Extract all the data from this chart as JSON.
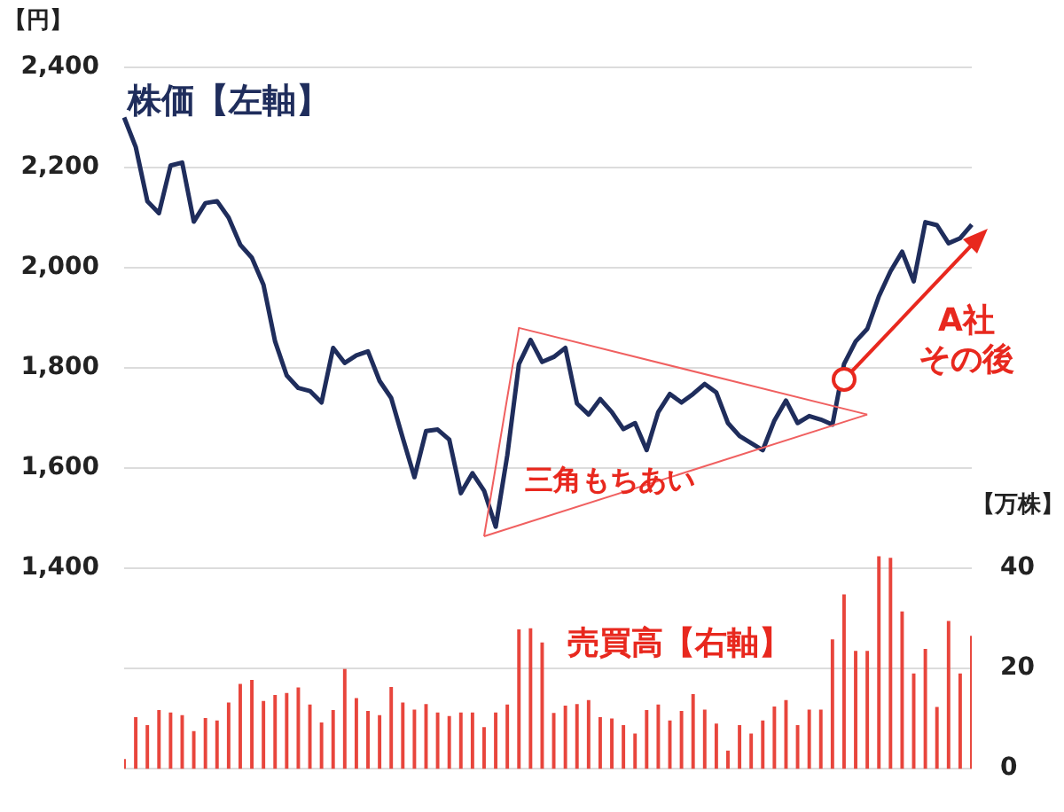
{
  "chart_data": {
    "type": "line",
    "categories": [
      null,
      null,
      null,
      null,
      null,
      null,
      null,
      null,
      null,
      null,
      null,
      null,
      null,
      null,
      null,
      null,
      null,
      null,
      null,
      null,
      null,
      null,
      null,
      null,
      null,
      null,
      null,
      null,
      null,
      null,
      null,
      null,
      null,
      null,
      null,
      null,
      null,
      null,
      null,
      null,
      null,
      null,
      null,
      null,
      null,
      null,
      null,
      null,
      null,
      null,
      null,
      null,
      null,
      null,
      null,
      null,
      null,
      null,
      null,
      null,
      null,
      null,
      null,
      null,
      null,
      null,
      null,
      null,
      null,
      null,
      null,
      null,
      null,
      null
    ],
    "series": [
      {
        "type": "bar",
        "axis": "y2",
        "color": "#e8453c",
        "values": [
          1.8,
          10.2,
          8.6,
          11.6,
          11.1,
          10.6,
          7.4,
          10,
          9.5,
          13.1,
          16.8,
          17.6,
          13.4,
          14.6,
          15,
          16.1,
          12.7,
          9.1,
          11.6,
          19.8,
          14,
          11.4,
          10.6,
          16.2,
          13.1,
          11.7,
          12.8,
          11.1,
          10.4,
          11.1,
          11.1,
          8.2,
          11.1,
          12.7,
          27.7,
          27.9,
          25.1,
          11,
          12.5,
          12.8,
          13.6,
          10.2,
          9.9,
          8.6,
          6.9,
          11.6,
          12.7,
          9.5,
          11.4,
          14.8,
          11.7,
          8.9,
          3.5,
          8.6,
          6.9,
          9.5,
          12.3,
          13.6,
          8.6,
          11.7,
          11.7,
          25.7,
          34.7,
          23.4,
          23.4,
          42.3,
          42,
          31.3,
          18.9,
          23.8,
          12.2,
          29.4,
          18.9,
          26.4
        ]
      },
      {
        "type": "line",
        "axis": "y",
        "color": "#f06060",
        "values": [
          null,
          null,
          null,
          null,
          null,
          null,
          null,
          null,
          null,
          null,
          null,
          null,
          null,
          null,
          null,
          null,
          null,
          null,
          null,
          null,
          null,
          null,
          null,
          null,
          null,
          null,
          null,
          null,
          null,
          null,
          null,
          1464,
          null,
          null,
          1880,
          null,
          null,
          null,
          null,
          null,
          null,
          null,
          null,
          null,
          null,
          null,
          null,
          null,
          null,
          null,
          null,
          null,
          null,
          null,
          null,
          null,
          null,
          null,
          null,
          null,
          null,
          null,
          null,
          null,
          1707,
          null,
          null,
          null,
          null,
          null,
          null,
          null,
          null,
          null
        ]
      },
      {
        "type": "line",
        "axis": "y",
        "color": "#f06060",
        "values": [
          null,
          null,
          null,
          null,
          null,
          null,
          null,
          null,
          null,
          null,
          null,
          null,
          null,
          null,
          null,
          null,
          null,
          null,
          null,
          null,
          null,
          null,
          null,
          null,
          null,
          null,
          null,
          null,
          null,
          null,
          null,
          1464,
          null,
          null,
          null,
          null,
          null,
          null,
          null,
          null,
          null,
          null,
          null,
          null,
          null,
          null,
          null,
          null,
          null,
          null,
          null,
          null,
          null,
          null,
          null,
          null,
          null,
          null,
          null,
          null,
          null,
          null,
          null,
          null,
          1707,
          null,
          null,
          null,
          null,
          null,
          null,
          null,
          null,
          null
        ]
      },
      {
        "axis": "y",
        "color": "#1f2d5c",
        "values": [
          2300,
          2241,
          2133,
          2109,
          2204,
          2210,
          2092,
          2129,
          2133,
          2100,
          2046,
          2020,
          1966,
          1853,
          1785,
          1760,
          1754,
          1731,
          1840,
          1810,
          1825,
          1833,
          1774,
          1740,
          1660,
          1582,
          1674,
          1677,
          1657,
          1550,
          1590,
          1555,
          1483,
          1626,
          1808,
          1856,
          1812,
          1822,
          1840,
          1729,
          1707,
          1738,
          1712,
          1678,
          1690,
          1636,
          1712,
          1748,
          1731,
          1748,
          1768,
          1751,
          1690,
          1664,
          1650,
          1636,
          1695,
          1735,
          1690,
          1704,
          1697,
          1687,
          1808,
          1853,
          1878,
          1943,
          1993,
          2032,
          1973,
          2091,
          2085,
          2049,
          2059,
          2086
        ]
      }
    ],
    "ylim": [
      1000,
      2400
    ],
    "yticks": [
      {
        "value": 1000,
        "label": null
      },
      {
        "value": 1200,
        "label": null
      },
      {
        "value": 1400,
        "label": "1,400"
      },
      {
        "value": 1600,
        "label": "1,600"
      },
      {
        "value": 1800,
        "label": "1,800"
      },
      {
        "value": 2000,
        "label": "2,000"
      },
      {
        "value": 2200,
        "label": "2,200"
      },
      {
        "value": 2400,
        "label": "2,400"
      }
    ],
    "y2lim": [
      0,
      140
    ],
    "y2ticks": [
      0,
      20,
      40
    ],
    "ylabel": "【円】",
    "y2label": "【万株】",
    "grid": "y",
    "annotations": [
      "株価【左軸】",
      "売買高【右軸】",
      "三角もちあい",
      "A社その後"
    ]
  }
}
